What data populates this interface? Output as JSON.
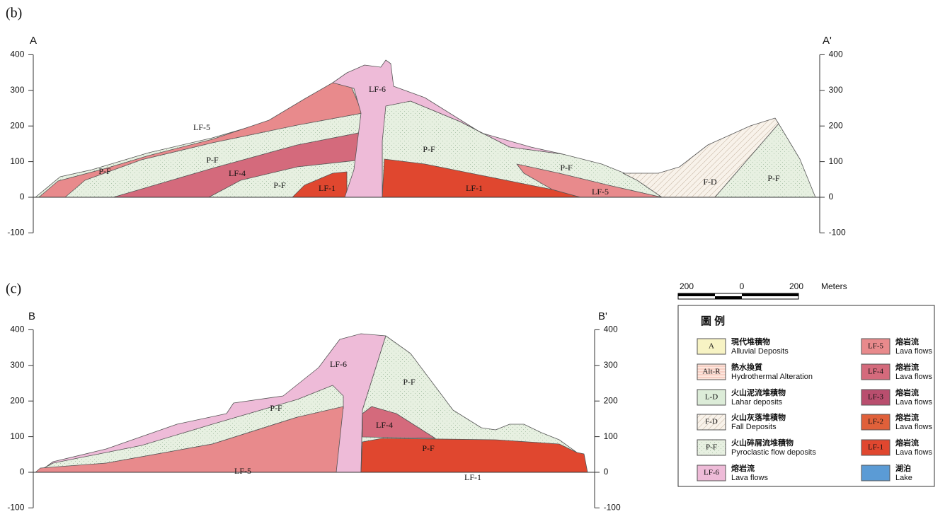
{
  "panels": [
    {
      "label": "(b)",
      "left_end": "A",
      "right_end": "A'",
      "yticks": [
        400,
        300,
        200,
        100,
        0,
        -100
      ],
      "units": [
        "LF-6",
        "LF-5",
        "P-F",
        "LF-4",
        "P-F",
        "P-F",
        "LF-1",
        "P-F",
        "LF-1",
        "P-F",
        "LF-5",
        "F-D",
        "P-F"
      ]
    },
    {
      "label": "(c)",
      "left_end": "B",
      "right_end": "B'",
      "yticks": [
        400,
        300,
        200,
        100,
        0,
        -100
      ],
      "units": [
        "LF-6",
        "P-F",
        "P-F",
        "LF-4",
        "P-F",
        "LF-5",
        "LF-1"
      ]
    }
  ],
  "scale_bar": {
    "labels": [
      "200",
      "0",
      "200"
    ],
    "unit": "Meters"
  },
  "legend": {
    "title": "圖 例",
    "items": [
      {
        "code": "A",
        "name_zh": "現代堆積物",
        "name_en": "Alluvial Deposits"
      },
      {
        "code": "Alt-R",
        "name_zh": "熱水換質",
        "name_en": "Hydrothermal Alteration"
      },
      {
        "code": "L-D",
        "name_zh": "火山泥流堆積物",
        "name_en": "Lahar deposits"
      },
      {
        "code": "F-D",
        "name_zh": "火山灰落堆積物",
        "name_en": "Fall Deposits"
      },
      {
        "code": "P-F",
        "name_zh": "火山碎屑流堆積物",
        "name_en": "Pyroclastic flow deposits"
      },
      {
        "code": "LF-6",
        "name_zh": "熔岩流",
        "name_en": "Lava flows"
      },
      {
        "code": "LF-5",
        "name_zh": "熔岩流",
        "name_en": "Lava flows"
      },
      {
        "code": "LF-4",
        "name_zh": "熔岩流",
        "name_en": "Lava flows"
      },
      {
        "code": "LF-3",
        "name_zh": "熔岩流",
        "name_en": "Lava flows"
      },
      {
        "code": "LF-2",
        "name_zh": "熔岩流",
        "name_en": "Lava flows"
      },
      {
        "code": "LF-1",
        "name_zh": "熔岩流",
        "name_en": "Lava flows"
      },
      {
        "name_zh": "湖泊",
        "name_en": "Lake"
      }
    ]
  }
}
